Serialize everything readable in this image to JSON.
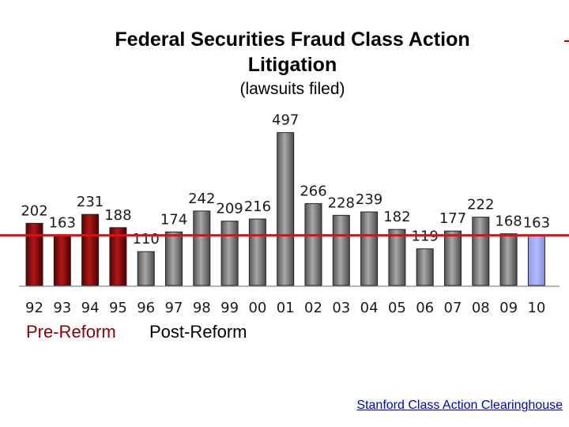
{
  "chart_data": {
    "type": "bar",
    "title": "Federal Securities Fraud Class Action Litigation",
    "subtitle": "(lawsuits filed)",
    "categories": [
      "92",
      "93",
      "94",
      "95",
      "96",
      "97",
      "98",
      "99",
      "00",
      "01",
      "02",
      "03",
      "04",
      "05",
      "06",
      "07",
      "08",
      "09",
      "10"
    ],
    "values": [
      202,
      163,
      231,
      188,
      110,
      174,
      242,
      209,
      216,
      497,
      266,
      228,
      239,
      182,
      119,
      177,
      222,
      168,
      163
    ],
    "period": [
      "pre",
      "pre",
      "pre",
      "pre",
      "post",
      "post",
      "post",
      "post",
      "post",
      "post",
      "post",
      "post",
      "post",
      "post",
      "post",
      "post",
      "post",
      "post",
      "current"
    ],
    "reference_line": 163,
    "ylim": [
      0,
      520
    ],
    "grid": false,
    "colors": {
      "pre": "#8b0a0a",
      "post": "#808080",
      "current": "#9aa6f0",
      "reference_line": "#dd1111"
    },
    "era_labels": {
      "pre": "Pre-Reform",
      "post": "Post-Reform"
    }
  },
  "source": "Stanford Class Action Clearinghouse"
}
